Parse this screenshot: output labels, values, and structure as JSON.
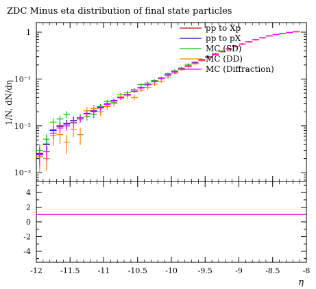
{
  "chart_data": {
    "type": "scatter",
    "title": "ZDC Minus eta distribution of final state particles",
    "ylabel_main": "1/N, dN/dη",
    "xlabel": "η",
    "yscale_main": "log",
    "ylim_main": [
      0.00065,
      1.6
    ],
    "ylim_ratio": [
      -5.5,
      5.5
    ],
    "xlim": [
      -12,
      -8
    ],
    "bin_width": 0.1,
    "x_ticks": [
      "-12",
      "-11.5",
      "-11",
      "-10.5",
      "-10",
      "-9.5",
      "-9",
      "-8.5",
      "-8"
    ],
    "y_ticks_main": [
      "1",
      "10⁻¹",
      "10⁻²",
      "10⁻³"
    ],
    "y_ticks_ratio": [
      "4",
      "2",
      "0",
      "-2",
      "-4"
    ],
    "legend_position": "top-right",
    "x": [
      -11.95,
      -11.85,
      -11.75,
      -11.65,
      -11.55,
      -11.45,
      -11.35,
      -11.25,
      -11.15,
      -11.05,
      -10.95,
      -10.85,
      -10.75,
      -10.65,
      -10.55,
      -10.45,
      -10.35,
      -10.25,
      -10.15,
      -10.05,
      -9.95,
      -9.85,
      -9.75,
      -9.65,
      -9.55,
      -9.45,
      -9.35,
      -9.25,
      -9.15,
      -9.05,
      -8.95,
      -8.85,
      -8.75,
      -8.65,
      -8.55,
      -8.45,
      -8.35,
      -8.25,
      -8.15
    ],
    "series": [
      {
        "name": "pp to Xp",
        "color": "#cc0000",
        "values": [
          0.0026,
          0.004,
          0.0082,
          0.0098,
          0.0112,
          0.013,
          0.015,
          0.0182,
          0.021,
          0.025,
          0.0295,
          0.0345,
          0.04,
          0.047,
          0.055,
          0.065,
          0.076,
          0.089,
          0.104,
          0.122,
          0.143,
          0.166,
          0.192,
          0.222,
          0.256,
          0.295,
          0.34,
          0.388,
          0.44,
          0.497,
          0.558,
          0.622,
          0.69,
          0.76,
          0.83,
          0.89,
          0.94,
          0.985,
          1.02
        ],
        "errors": [
          0.0009,
          0.0012,
          0.0018,
          0.002,
          0.0022,
          0.0024,
          0.0025,
          0.0028,
          0.003,
          0.0032,
          0.0034,
          0.0036,
          0.0038,
          0.004,
          0.004,
          0.005,
          0.006,
          0.006,
          0.007,
          0.008,
          0.009,
          0.01,
          0.011,
          0.012,
          0.013,
          0.014,
          0.015,
          0.016,
          0.017,
          0.018,
          0.019,
          0.02,
          0.021,
          0.022,
          0.023,
          0.024,
          0.025,
          0.025,
          0.026
        ]
      },
      {
        "name": "pp to pX",
        "color": "#0000ff",
        "values": [
          0.0025,
          0.0041,
          0.008,
          0.01,
          0.011,
          0.0132,
          0.0148,
          0.0185,
          0.0208,
          0.0252,
          0.029,
          0.0348,
          0.0398,
          0.0472,
          0.0548,
          0.0655,
          0.0755,
          0.0895,
          0.103,
          0.123,
          0.142,
          0.167,
          0.191,
          0.223,
          0.255,
          0.296,
          0.338,
          0.39,
          0.438,
          0.499,
          0.556,
          0.624,
          0.688,
          0.762,
          0.828,
          0.892,
          0.938,
          0.987,
          1.02
        ],
        "errors": [
          0.0009,
          0.0012,
          0.0018,
          0.002,
          0.0022,
          0.0024,
          0.0025,
          0.0028,
          0.003,
          0.0032,
          0.0034,
          0.0036,
          0.0038,
          0.004,
          0.004,
          0.005,
          0.006,
          0.006,
          0.007,
          0.008,
          0.009,
          0.01,
          0.011,
          0.012,
          0.013,
          0.014,
          0.015,
          0.016,
          0.017,
          0.018,
          0.019,
          0.02,
          0.021,
          0.022,
          0.023,
          0.024,
          0.025,
          0.025,
          0.026
        ]
      },
      {
        "name": "MC (SD)",
        "color": "#00cc00",
        "values": [
          0.003,
          0.0052,
          0.012,
          0.014,
          0.0175,
          0.0115,
          0.015,
          0.016,
          0.0175,
          0.026,
          0.033,
          0.032,
          0.046,
          0.052,
          0.059,
          0.076,
          0.082,
          0.093,
          0.106,
          0.13,
          0.152,
          0.172,
          0.205,
          0.23,
          0.262,
          0.3,
          0.348,
          0.395,
          0.445,
          0.502,
          0.56,
          0.628,
          0.694,
          0.765,
          0.835,
          0.893,
          0.942,
          0.99,
          1.02
        ],
        "errors": [
          0.001,
          0.0014,
          0.0025,
          0.0026,
          0.003,
          0.0025,
          0.0028,
          0.003,
          0.003,
          0.0034,
          0.0036,
          0.0036,
          0.004,
          0.004,
          0.0045,
          0.005,
          0.006,
          0.006,
          0.007,
          0.008,
          0.009,
          0.01,
          0.011,
          0.012,
          0.013,
          0.014,
          0.015,
          0.016,
          0.017,
          0.018,
          0.019,
          0.02,
          0.021,
          0.022,
          0.023,
          0.024,
          0.025,
          0.025,
          0.026
        ]
      },
      {
        "name": "MC (DD)",
        "color": "#ff7f00",
        "values": [
          0.0022,
          0.002,
          0.0062,
          0.0065,
          0.0045,
          0.0085,
          0.0065,
          0.021,
          0.0235,
          0.02,
          0.026,
          0.03,
          0.042,
          0.044,
          0.04,
          0.058,
          0.066,
          0.078,
          0.09,
          0.11,
          0.132,
          0.158,
          0.182,
          0.21,
          0.245,
          0.285,
          0.33,
          0.38,
          0.432,
          0.49,
          0.55,
          0.615,
          0.682,
          0.752,
          0.822,
          0.882,
          0.932,
          0.978,
          1.01
        ],
        "errors": [
          0.0012,
          0.0009,
          0.0025,
          0.0024,
          0.002,
          0.0028,
          0.0026,
          0.004,
          0.0045,
          0.0038,
          0.0042,
          0.0045,
          0.0055,
          0.0058,
          0.0052,
          0.006,
          0.007,
          0.007,
          0.008,
          0.009,
          0.01,
          0.011,
          0.012,
          0.013,
          0.014,
          0.015,
          0.016,
          0.017,
          0.018,
          0.019,
          0.02,
          0.021,
          0.022,
          0.023,
          0.024,
          0.025,
          0.026,
          0.026,
          0.027
        ]
      },
      {
        "name": "MC (Diffraction)",
        "color": "#ff00ff",
        "values": [
          0.0024,
          0.0028,
          0.007,
          0.009,
          0.01,
          0.012,
          0.014,
          0.018,
          0.02,
          0.024,
          0.0285,
          0.034,
          0.0395,
          0.0465,
          0.0545,
          0.064,
          0.075,
          0.088,
          0.102,
          0.12,
          0.141,
          0.164,
          0.19,
          0.22,
          0.254,
          0.293,
          0.338,
          0.386,
          0.438,
          0.495,
          0.556,
          0.62,
          0.688,
          0.758,
          0.828,
          0.888,
          0.938,
          0.982,
          1.02
        ],
        "errors": [
          0.001,
          0.001,
          0.0018,
          0.002,
          0.0022,
          0.0024,
          0.0025,
          0.0028,
          0.003,
          0.0032,
          0.0034,
          0.0036,
          0.0038,
          0.004,
          0.004,
          0.005,
          0.006,
          0.006,
          0.007,
          0.008,
          0.009,
          0.01,
          0.011,
          0.012,
          0.013,
          0.014,
          0.015,
          0.016,
          0.017,
          0.018,
          0.019,
          0.02,
          0.021,
          0.022,
          0.023,
          0.024,
          0.025,
          0.025,
          0.026
        ]
      }
    ],
    "ratio_series": [
      {
        "name": "pp to Xp",
        "color": "#cc0000",
        "value": 1
      },
      {
        "name": "pp to pX",
        "color": "#0000ff",
        "value": 1
      },
      {
        "name": "MC (SD)",
        "color": "#00cc00",
        "value": 1
      },
      {
        "name": "MC (DD)",
        "color": "#ff7f00",
        "value": 1
      },
      {
        "name": "MC (Diffraction)",
        "color": "#ff00ff",
        "value": 1
      }
    ]
  }
}
